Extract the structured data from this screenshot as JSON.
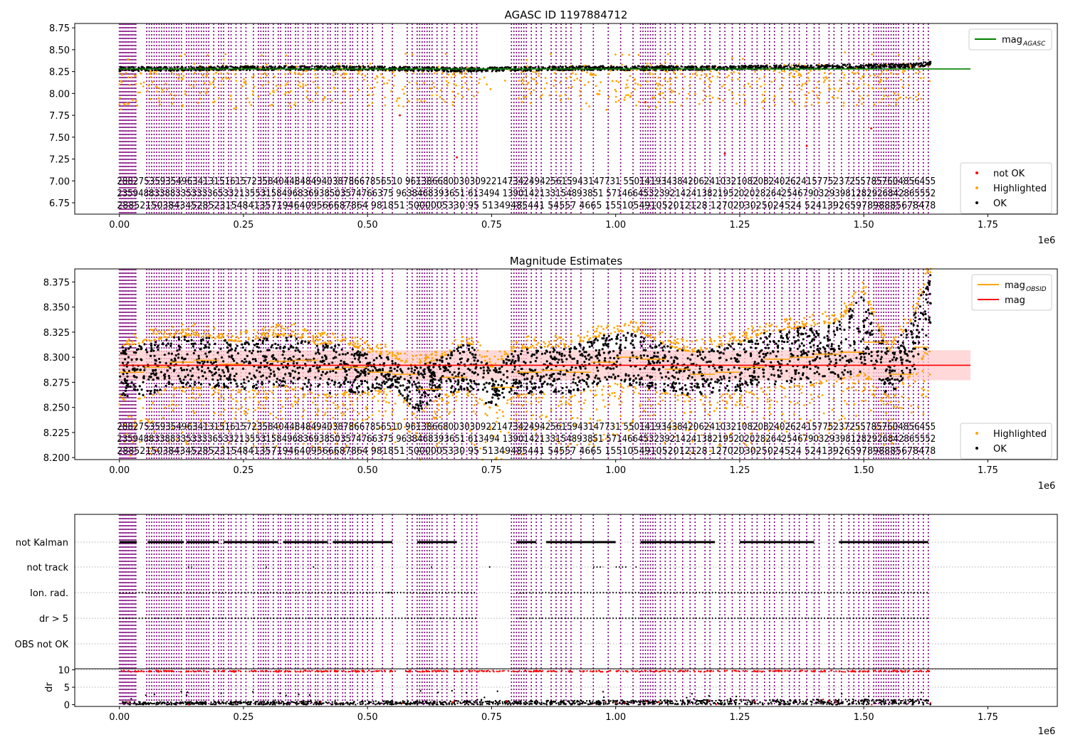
{
  "figure": {
    "background": "#ffffff"
  },
  "colors": {
    "ok": "#000000",
    "highlighted": "#ffa500",
    "not_ok": "#ff0000",
    "agasc_line": "#008000",
    "mag_line": "#ff0000",
    "mag_band": "#ffcccc",
    "obs_line": "#ffa500",
    "obsid_marker": "#800080"
  },
  "chart_data": [
    {
      "type": "scatter",
      "title": "AGASC ID 1197884712",
      "xlabel": "",
      "ylabel": "",
      "x_offset_label": "1e6",
      "xlim": [
        -0.09,
        1.89
      ],
      "ylim": [
        6.62,
        8.8
      ],
      "x_ticks": [
        "0.00",
        "0.25",
        "0.50",
        "0.75",
        "1.00",
        "1.25",
        "1.50",
        "1.75"
      ],
      "x_tick_values": [
        0,
        0.25,
        0.5,
        0.75,
        1.0,
        1.25,
        1.5,
        1.75
      ],
      "y_ticks": [
        "6.75",
        "7.00",
        "7.25",
        "7.50",
        "7.75",
        "8.00",
        "8.25",
        "8.50",
        "8.75"
      ],
      "y_tick_values": [
        6.75,
        7.0,
        7.25,
        7.5,
        7.75,
        8.0,
        8.25,
        8.5,
        8.75
      ],
      "legend_top": [
        {
          "label": "mag",
          "sub": "AGASC",
          "kind": "line",
          "color": "#008000"
        }
      ],
      "legend_bottom": [
        {
          "label": "not OK",
          "kind": "dot",
          "color": "#ff0000"
        },
        {
          "label": "Highlighted",
          "kind": "dot",
          "color": "#ffa500"
        },
        {
          "label": "OK",
          "kind": "dot",
          "color": "#000000"
        }
      ],
      "mag_agasc": 8.28,
      "mag_agasc_x": [
        0.0,
        1.715
      ],
      "ok_band": {
        "x": [
          0.0,
          0.1,
          0.2,
          0.3,
          0.4,
          0.5,
          0.6,
          0.7,
          0.8,
          0.9,
          1.0,
          1.1,
          1.2,
          1.3,
          1.4,
          1.5,
          1.6,
          1.63
        ],
        "y": [
          8.28,
          8.28,
          8.29,
          8.29,
          8.29,
          8.29,
          8.28,
          8.27,
          8.28,
          8.29,
          8.29,
          8.29,
          8.29,
          8.3,
          8.3,
          8.31,
          8.32,
          8.34
        ]
      },
      "highlighted_range": [
        7.7,
        8.46
      ],
      "not_ok_points": [
        {
          "x": 0.565,
          "y": 7.75
        },
        {
          "x": 0.68,
          "y": 7.27
        },
        {
          "x": 1.22,
          "y": 7.31
        },
        {
          "x": 1.385,
          "y": 7.4
        },
        {
          "x": 1.515,
          "y": 7.6
        },
        {
          "x": 1.06,
          "y": 7.9
        }
      ]
    },
    {
      "type": "scatter",
      "title": "Magnitude Estimates",
      "xlabel": "",
      "ylabel": "",
      "x_offset_label": "1e6",
      "xlim": [
        -0.09,
        1.89
      ],
      "ylim": [
        8.198,
        8.388
      ],
      "x_ticks": [
        "0.00",
        "0.25",
        "0.50",
        "0.75",
        "1.00",
        "1.25",
        "1.50",
        "1.75"
      ],
      "x_tick_values": [
        0,
        0.25,
        0.5,
        0.75,
        1.0,
        1.25,
        1.5,
        1.75
      ],
      "y_ticks": [
        "8.200",
        "8.225",
        "8.250",
        "8.275",
        "8.300",
        "8.325",
        "8.350",
        "8.375"
      ],
      "y_tick_values": [
        8.2,
        8.225,
        8.25,
        8.275,
        8.3,
        8.325,
        8.35,
        8.375
      ],
      "legend_top": [
        {
          "label": "mag",
          "sub": "OBSID",
          "kind": "line",
          "color": "#ffa500"
        },
        {
          "label": "mag",
          "sub": "",
          "kind": "line",
          "color": "#ff0000"
        }
      ],
      "legend_bottom": [
        {
          "label": "Highlighted",
          "kind": "dot",
          "color": "#ffa500"
        },
        {
          "label": "OK",
          "kind": "dot",
          "color": "#000000"
        }
      ],
      "mag": 8.292,
      "mag_band": [
        8.277,
        8.307
      ],
      "mag_x": [
        0.0,
        1.715
      ],
      "obsid_mean": {
        "x": [
          0.0,
          0.05,
          0.1,
          0.15,
          0.2,
          0.25,
          0.3,
          0.35,
          0.4,
          0.45,
          0.5,
          0.55,
          0.6,
          0.65,
          0.7,
          0.75,
          0.8,
          0.85,
          0.9,
          0.95,
          1.0,
          1.05,
          1.1,
          1.15,
          1.2,
          1.25,
          1.3,
          1.35,
          1.4,
          1.45,
          1.5,
          1.55,
          1.6,
          1.63
        ],
        "y": [
          8.285,
          8.29,
          8.295,
          8.297,
          8.293,
          8.292,
          8.296,
          8.297,
          8.288,
          8.29,
          8.285,
          8.283,
          8.268,
          8.28,
          8.292,
          8.27,
          8.285,
          8.287,
          8.285,
          8.295,
          8.3,
          8.298,
          8.288,
          8.283,
          8.285,
          8.29,
          8.298,
          8.3,
          8.303,
          8.305,
          8.315,
          8.283,
          8.31,
          8.345
        ]
      },
      "obsid_spread": {
        "x": [
          0.0,
          0.05,
          0.1,
          0.15,
          0.2,
          0.25,
          0.3,
          0.35,
          0.4,
          0.45,
          0.5,
          0.55,
          0.6,
          0.65,
          0.7,
          0.75,
          0.8,
          0.85,
          0.9,
          0.95,
          1.0,
          1.05,
          1.1,
          1.15,
          1.2,
          1.25,
          1.3,
          1.35,
          1.4,
          1.45,
          1.5,
          1.55,
          1.6,
          1.63
        ],
        "lo": [
          8.262,
          8.26,
          8.27,
          8.27,
          8.27,
          8.268,
          8.27,
          8.272,
          8.262,
          8.265,
          8.265,
          8.27,
          8.245,
          8.262,
          8.268,
          8.25,
          8.262,
          8.265,
          8.262,
          8.27,
          8.275,
          8.27,
          8.265,
          8.262,
          8.262,
          8.265,
          8.27,
          8.272,
          8.275,
          8.278,
          8.285,
          8.262,
          8.285,
          8.31
        ],
        "hi": [
          8.31,
          8.315,
          8.32,
          8.322,
          8.318,
          8.315,
          8.32,
          8.322,
          8.312,
          8.315,
          8.305,
          8.3,
          8.29,
          8.3,
          8.315,
          8.29,
          8.308,
          8.31,
          8.31,
          8.318,
          8.325,
          8.325,
          8.312,
          8.305,
          8.31,
          8.315,
          8.325,
          8.328,
          8.332,
          8.335,
          8.365,
          8.305,
          8.34,
          8.382
        ]
      }
    },
    {
      "type": "scatter",
      "title": "",
      "xlabel": "",
      "ylabel": "",
      "x_offset_label": "1e6",
      "xlim": [
        -0.09,
        1.89
      ],
      "flag_rows": [
        "not Kalman",
        "not track",
        "Ion. rad.",
        "dr > 5",
        "OBS not OK"
      ],
      "x_ticks": [
        "0.00",
        "0.25",
        "0.50",
        "0.75",
        "1.00",
        "1.25",
        "1.50",
        "1.75"
      ],
      "x_tick_values": [
        0,
        0.25,
        0.5,
        0.75,
        1.0,
        1.25,
        1.5,
        1.75
      ],
      "flag_segments": {
        "not Kalman": [
          [
            0.0,
            0.035
          ],
          [
            0.057,
            0.13
          ],
          [
            0.135,
            0.2
          ],
          [
            0.21,
            0.32
          ],
          [
            0.33,
            0.42
          ],
          [
            0.43,
            0.5
          ],
          [
            0.5,
            0.55
          ],
          [
            0.6,
            0.68
          ],
          [
            0.8,
            0.84
          ],
          [
            0.86,
            1.0
          ],
          [
            1.05,
            1.2
          ],
          [
            1.25,
            1.4
          ],
          [
            1.45,
            1.63
          ]
        ],
        "not track": [
          [
            0.138,
            0.146
          ],
          [
            0.295,
            0.3
          ],
          [
            0.39,
            0.396
          ],
          [
            0.628,
            0.632
          ],
          [
            0.745,
            0.75
          ],
          [
            0.955,
            0.975
          ],
          [
            1.0,
            1.025
          ],
          [
            1.04,
            1.045
          ]
        ],
        "Ion. rad.": [
          [
            0.0,
            0.55
          ],
          [
            0.54,
            0.72
          ],
          [
            0.8,
            1.63
          ]
        ],
        "dr > 5": [
          [
            0.0,
            0.72
          ],
          [
            0.8,
            1.63
          ]
        ],
        "OBS not OK": []
      },
      "dr_ylabel": "dr",
      "dr_ylim": [
        -0.5,
        10.3
      ],
      "dr_ticks": [
        "0",
        "5",
        "10"
      ],
      "dr_tick_values": [
        0,
        5,
        10
      ],
      "dr_threshold": 10,
      "dr_level": 0.8,
      "dr_level_max": 1.6
    }
  ],
  "obsid_marks": {
    "x": [
      0.0,
      0.003,
      0.006,
      0.009,
      0.012,
      0.015,
      0.018,
      0.021,
      0.024,
      0.027,
      0.03,
      0.033,
      0.055,
      0.06,
      0.065,
      0.07,
      0.075,
      0.08,
      0.085,
      0.09,
      0.095,
      0.1,
      0.105,
      0.11,
      0.115,
      0.12,
      0.125,
      0.135,
      0.14,
      0.145,
      0.15,
      0.155,
      0.16,
      0.165,
      0.17,
      0.175,
      0.18,
      0.19,
      0.2,
      0.205,
      0.21,
      0.22,
      0.225,
      0.235,
      0.245,
      0.255,
      0.27,
      0.28,
      0.285,
      0.29,
      0.295,
      0.3,
      0.31,
      0.32,
      0.325,
      0.335,
      0.34,
      0.345,
      0.355,
      0.36,
      0.37,
      0.38,
      0.385,
      0.395,
      0.4,
      0.41,
      0.42,
      0.425,
      0.435,
      0.44,
      0.45,
      0.455,
      0.465,
      0.47,
      0.48,
      0.49,
      0.5,
      0.51,
      0.53,
      0.55,
      0.58,
      0.59,
      0.6,
      0.605,
      0.61,
      0.615,
      0.62,
      0.625,
      0.63,
      0.64,
      0.65,
      0.66,
      0.675,
      0.69,
      0.7,
      0.71,
      0.72,
      0.79,
      0.795,
      0.8,
      0.805,
      0.81,
      0.815,
      0.82,
      0.83,
      0.84,
      0.85,
      0.87,
      0.88,
      0.89,
      0.9,
      0.91,
      0.93,
      0.955,
      0.985,
      1.01,
      1.035,
      1.05,
      1.055,
      1.06,
      1.065,
      1.07,
      1.075,
      1.08,
      1.09,
      1.1,
      1.11,
      1.12,
      1.135,
      1.15,
      1.16,
      1.18,
      1.19,
      1.21,
      1.22,
      1.235,
      1.25,
      1.26,
      1.275,
      1.285,
      1.3,
      1.31,
      1.32,
      1.335,
      1.35,
      1.36,
      1.37,
      1.385,
      1.4,
      1.41,
      1.43,
      1.44,
      1.455,
      1.47,
      1.48,
      1.49,
      1.5,
      1.51,
      1.52,
      1.525,
      1.53,
      1.535,
      1.54,
      1.545,
      1.55,
      1.555,
      1.56,
      1.565,
      1.57,
      1.58,
      1.59,
      1.6,
      1.61,
      1.62,
      1.63
    ]
  },
  "obsid_labels": {
    "row1": "28827535935496341315161572358404484849403878667856510 9613866800303092214734249425615943147731 5501419343842062410321082082402624157752372557857604856455",
    "row2": "2359488338833533336533213553158496836938503574766375 9638468393651 613494 1390142133154893851 57146645323921424138219520202826425467903293981282926842865552",
    "row3": "28852150384345285231548413571946409566687864 981851 5000005330 95 51349485441 54557 4665 155105491052012128 1270203025024524 52413926597898885678478"
  }
}
